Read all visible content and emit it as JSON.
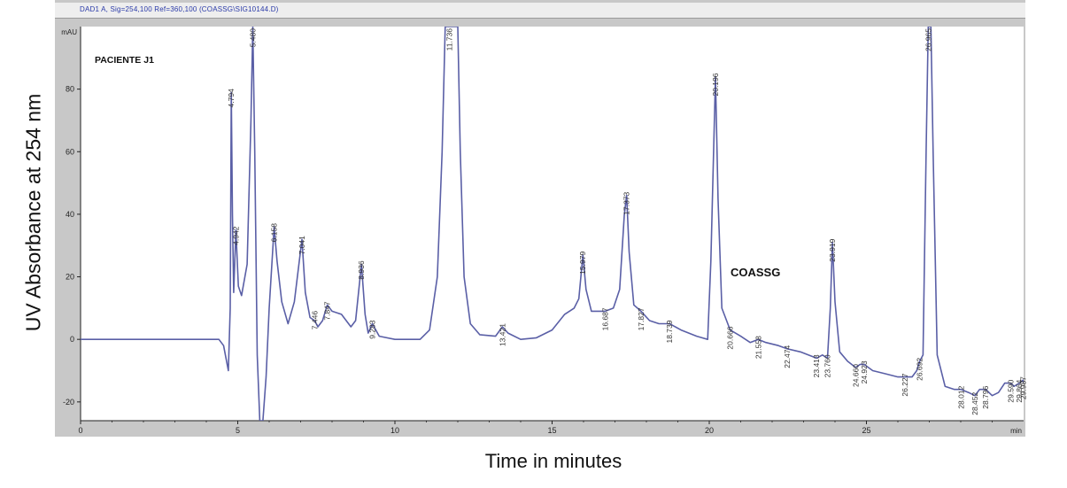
{
  "window": {
    "title": "DAD1 A, Sig=254,100 Ref=360,100 (COASSG\\SIG10144.D)"
  },
  "chart_data": {
    "type": "line",
    "title": "PACIENTE J1",
    "xlabel": "Time in minutes",
    "ylabel": "UV Absorbance at 254 nm",
    "y_unit": "mAU",
    "x_unit": "min",
    "xlim": [
      0,
      30
    ],
    "ylim": [
      -26,
      100
    ],
    "x_ticks": [
      0,
      5,
      10,
      15,
      20,
      25
    ],
    "y_ticks": [
      -20,
      0,
      20,
      40,
      60,
      80
    ],
    "grid": false,
    "colors": {
      "trace": "#5a5fa6",
      "plot_bg": "#ffffff",
      "frame": "#c8c8c8"
    },
    "annotation": {
      "text": "COASSG",
      "x": 21.7,
      "y": 22
    },
    "peaks": [
      {
        "label": "4.794",
        "x": 4.794,
        "y": 79
      },
      {
        "label": "4.942",
        "x": 4.942,
        "y": 35
      },
      {
        "label": "5.480",
        "x": 5.48,
        "y": 100
      },
      {
        "label": "6.158",
        "x": 6.158,
        "y": 36
      },
      {
        "label": "7.041",
        "x": 7.041,
        "y": 32
      },
      {
        "label": "7.446",
        "x": 7.446,
        "y": 8
      },
      {
        "label": "7.847",
        "x": 7.847,
        "y": 11
      },
      {
        "label": "8.936",
        "x": 8.936,
        "y": 24
      },
      {
        "label": "9.283",
        "x": 9.283,
        "y": 5
      },
      {
        "label": "11.736",
        "x": 11.736,
        "y": 100
      },
      {
        "label": "13.421",
        "x": 13.421,
        "y": 4
      },
      {
        "label": "15.979",
        "x": 15.979,
        "y": 27
      },
      {
        "label": "16.687",
        "x": 16.687,
        "y": 9
      },
      {
        "label": "17.373",
        "x": 17.373,
        "y": 46
      },
      {
        "label": "17.827",
        "x": 17.827,
        "y": 9
      },
      {
        "label": "18.739",
        "x": 18.739,
        "y": 5
      },
      {
        "label": "20.196",
        "x": 20.196,
        "y": 84
      },
      {
        "label": "20.666",
        "x": 20.666,
        "y": 3
      },
      {
        "label": "21.558",
        "x": 21.558,
        "y": 0
      },
      {
        "label": "22.474",
        "x": 22.474,
        "y": -3
      },
      {
        "label": "23.413",
        "x": 23.413,
        "y": -6
      },
      {
        "label": "23.760",
        "x": 23.76,
        "y": -6
      },
      {
        "label": "23.919",
        "x": 23.919,
        "y": 31
      },
      {
        "label": "24.660",
        "x": 24.66,
        "y": -9
      },
      {
        "label": "24.923",
        "x": 24.923,
        "y": -8
      },
      {
        "label": "26.227",
        "x": 26.227,
        "y": -12
      },
      {
        "label": "26.692",
        "x": 26.692,
        "y": -7
      },
      {
        "label": "26.965",
        "x": 26.965,
        "y": 100
      },
      {
        "label": "28.012",
        "x": 28.012,
        "y": -16
      },
      {
        "label": "28.452",
        "x": 28.452,
        "y": -18
      },
      {
        "label": "28.796",
        "x": 28.796,
        "y": -16
      },
      {
        "label": "29.590",
        "x": 29.59,
        "y": -14
      },
      {
        "label": "29.864",
        "x": 29.864,
        "y": -14
      },
      {
        "label": "29.987",
        "x": 29.987,
        "y": -13
      }
    ],
    "trace": [
      [
        0,
        0
      ],
      [
        2.0,
        0
      ],
      [
        4.4,
        0
      ],
      [
        4.55,
        -2
      ],
      [
        4.7,
        -10
      ],
      [
        4.76,
        10
      ],
      [
        4.794,
        79
      ],
      [
        4.83,
        40
      ],
      [
        4.87,
        15
      ],
      [
        4.942,
        35
      ],
      [
        5.02,
        17
      ],
      [
        5.12,
        14
      ],
      [
        5.3,
        24
      ],
      [
        5.42,
        70
      ],
      [
        5.48,
        100
      ],
      [
        5.54,
        60
      ],
      [
        5.62,
        -5
      ],
      [
        5.7,
        -26
      ],
      [
        5.8,
        -26
      ],
      [
        5.9,
        -12
      ],
      [
        6.0,
        10
      ],
      [
        6.158,
        36
      ],
      [
        6.25,
        25
      ],
      [
        6.4,
        12
      ],
      [
        6.6,
        5
      ],
      [
        6.8,
        12
      ],
      [
        7.041,
        32
      ],
      [
        7.15,
        15
      ],
      [
        7.3,
        7
      ],
      [
        7.446,
        6
      ],
      [
        7.55,
        4
      ],
      [
        7.7,
        6
      ],
      [
        7.847,
        11
      ],
      [
        8.0,
        9
      ],
      [
        8.3,
        8
      ],
      [
        8.6,
        4
      ],
      [
        8.75,
        6
      ],
      [
        8.936,
        24
      ],
      [
        9.05,
        8
      ],
      [
        9.15,
        2
      ],
      [
        9.283,
        5
      ],
      [
        9.5,
        1
      ],
      [
        10.0,
        0
      ],
      [
        10.8,
        0
      ],
      [
        11.1,
        3
      ],
      [
        11.35,
        20
      ],
      [
        11.5,
        60
      ],
      [
        11.6,
        100
      ],
      [
        12.0,
        100
      ],
      [
        12.08,
        60
      ],
      [
        12.2,
        20
      ],
      [
        12.4,
        5
      ],
      [
        12.7,
        1.5
      ],
      [
        13.2,
        1
      ],
      [
        13.421,
        4
      ],
      [
        13.6,
        2
      ],
      [
        14.0,
        0
      ],
      [
        14.5,
        0.5
      ],
      [
        15.0,
        3
      ],
      [
        15.4,
        8
      ],
      [
        15.7,
        10
      ],
      [
        15.85,
        13
      ],
      [
        15.979,
        27
      ],
      [
        16.08,
        16
      ],
      [
        16.25,
        9
      ],
      [
        16.687,
        9
      ],
      [
        16.95,
        10
      ],
      [
        17.15,
        16
      ],
      [
        17.3,
        40
      ],
      [
        17.373,
        46
      ],
      [
        17.45,
        28
      ],
      [
        17.6,
        11
      ],
      [
        17.827,
        9
      ],
      [
        18.1,
        6
      ],
      [
        18.4,
        5
      ],
      [
        18.739,
        5
      ],
      [
        19.1,
        3
      ],
      [
        19.6,
        1
      ],
      [
        19.95,
        0
      ],
      [
        20.05,
        25
      ],
      [
        20.196,
        84
      ],
      [
        20.28,
        45
      ],
      [
        20.4,
        10
      ],
      [
        20.666,
        3
      ],
      [
        21.0,
        1
      ],
      [
        21.3,
        -1
      ],
      [
        21.558,
        0
      ],
      [
        21.8,
        -1
      ],
      [
        22.2,
        -2
      ],
      [
        22.474,
        -3
      ],
      [
        22.9,
        -4
      ],
      [
        23.413,
        -6
      ],
      [
        23.6,
        -5
      ],
      [
        23.76,
        -6
      ],
      [
        23.85,
        10
      ],
      [
        23.919,
        31
      ],
      [
        24.0,
        12
      ],
      [
        24.15,
        -4
      ],
      [
        24.4,
        -7
      ],
      [
        24.66,
        -9
      ],
      [
        24.8,
        -8
      ],
      [
        24.923,
        -8
      ],
      [
        25.2,
        -10
      ],
      [
        25.6,
        -11
      ],
      [
        26.0,
        -12
      ],
      [
        26.227,
        -12
      ],
      [
        26.45,
        -12
      ],
      [
        26.6,
        -10
      ],
      [
        26.692,
        -7
      ],
      [
        26.8,
        -5
      ],
      [
        26.9,
        60
      ],
      [
        26.965,
        100
      ],
      [
        27.05,
        100
      ],
      [
        27.12,
        60
      ],
      [
        27.25,
        -5
      ],
      [
        27.5,
        -15
      ],
      [
        27.8,
        -16
      ],
      [
        28.012,
        -16
      ],
      [
        28.25,
        -17
      ],
      [
        28.452,
        -18
      ],
      [
        28.6,
        -16
      ],
      [
        28.796,
        -16
      ],
      [
        29.0,
        -18
      ],
      [
        29.2,
        -17
      ],
      [
        29.4,
        -14
      ],
      [
        29.59,
        -14
      ],
      [
        29.7,
        -15
      ],
      [
        29.864,
        -14
      ],
      [
        29.987,
        -13
      ],
      [
        30.0,
        -14
      ]
    ]
  }
}
